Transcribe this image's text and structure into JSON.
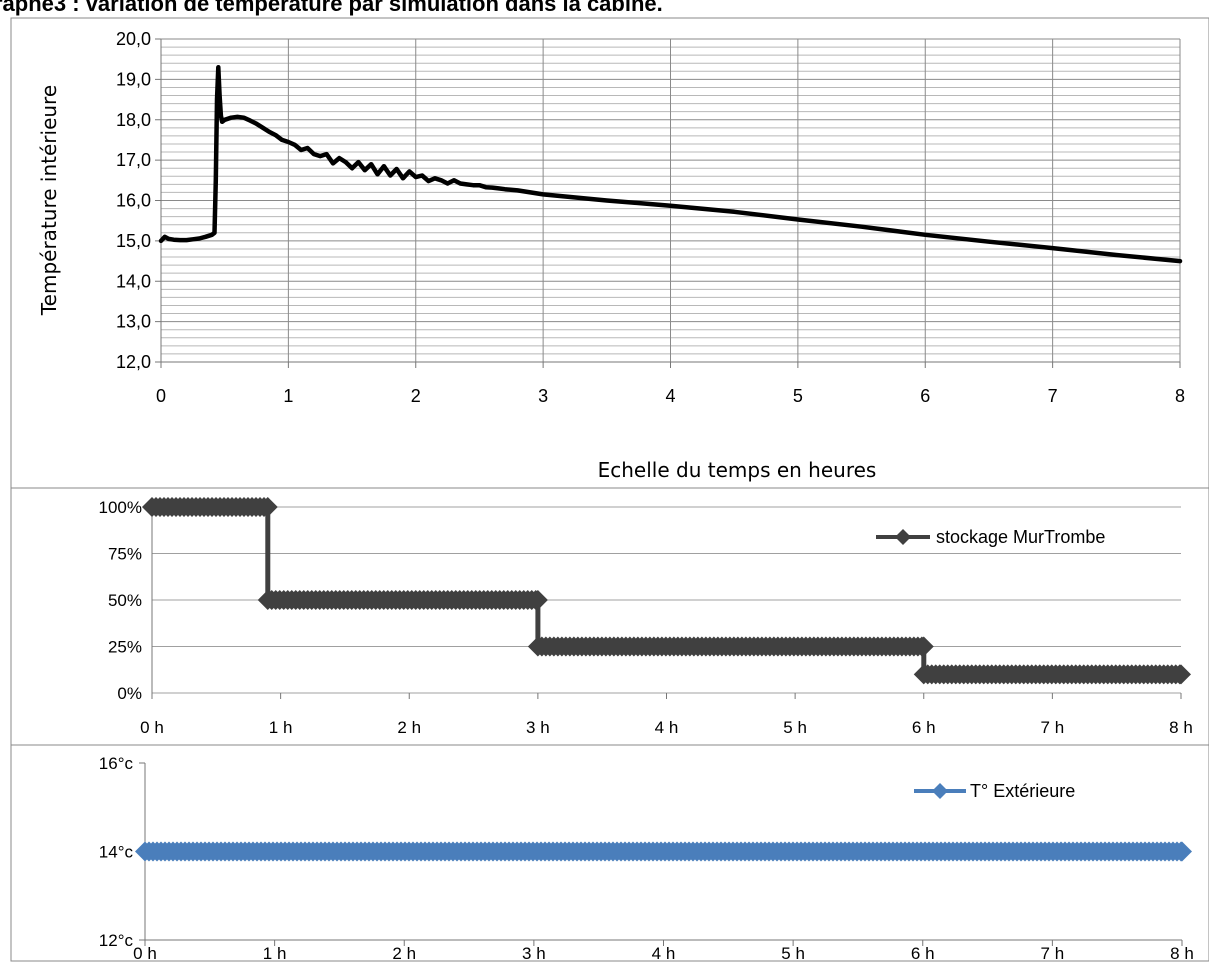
{
  "page_title": "raphe3 : variation de température par simulation dans la cabine.",
  "chart_data": [
    {
      "type": "line",
      "title": "",
      "xlabel": "Echelle du temps en heures",
      "ylabel": "Température intérieure",
      "xlim": [
        0,
        8
      ],
      "ylim": [
        12,
        20
      ],
      "x_ticks": [
        "0",
        "1",
        "2",
        "3",
        "4",
        "5",
        "6",
        "7",
        "8"
      ],
      "y_ticks": [
        "12,0",
        "13,0",
        "14,0",
        "15,0",
        "16,0",
        "17,0",
        "18,0",
        "19,0",
        "20,0"
      ],
      "grid": "major and minor",
      "series": [
        {
          "color": "#000000",
          "x": [
            0,
            0.03,
            0.06,
            0.1,
            0.15,
            0.2,
            0.25,
            0.3,
            0.35,
            0.4,
            0.42,
            0.43,
            0.44,
            0.45,
            0.46,
            0.47,
            0.48,
            0.5,
            0.55,
            0.6,
            0.65,
            0.7,
            0.75,
            0.8,
            0.85,
            0.9,
            0.95,
            1.0,
            1.05,
            1.1,
            1.15,
            1.2,
            1.25,
            1.3,
            1.35,
            1.4,
            1.45,
            1.5,
            1.55,
            1.6,
            1.65,
            1.7,
            1.75,
            1.8,
            1.85,
            1.9,
            1.95,
            2.0,
            2.05,
            2.1,
            2.15,
            2.2,
            2.25,
            2.3,
            2.35,
            2.4,
            2.45,
            2.5,
            2.55,
            2.6,
            2.65,
            2.7,
            2.8,
            2.9,
            3.0,
            3.5,
            4.0,
            4.5,
            5.0,
            5.5,
            6.0,
            6.5,
            7.0,
            7.5,
            8.0
          ],
          "y": [
            15.0,
            15.1,
            15.05,
            15.03,
            15.02,
            15.02,
            15.04,
            15.06,
            15.1,
            15.15,
            15.2,
            16.5,
            18.5,
            19.3,
            18.6,
            18.1,
            17.95,
            18.0,
            18.05,
            18.07,
            18.05,
            17.98,
            17.9,
            17.8,
            17.7,
            17.62,
            17.5,
            17.45,
            17.38,
            17.25,
            17.3,
            17.15,
            17.1,
            17.15,
            16.92,
            17.05,
            16.95,
            16.8,
            16.95,
            16.75,
            16.9,
            16.65,
            16.85,
            16.62,
            16.78,
            16.55,
            16.72,
            16.58,
            16.62,
            16.48,
            16.55,
            16.5,
            16.42,
            16.5,
            16.42,
            16.4,
            16.38,
            16.38,
            16.33,
            16.32,
            16.3,
            16.28,
            16.25,
            16.2,
            16.15,
            16.0,
            15.87,
            15.72,
            15.53,
            15.35,
            15.15,
            14.98,
            14.82,
            14.65,
            14.5
          ]
        }
      ]
    },
    {
      "type": "line",
      "title": "",
      "xlabel": "",
      "ylabel": "",
      "xlim": [
        0,
        8
      ],
      "ylim": [
        0,
        100
      ],
      "x_ticks": [
        "0 h",
        "1 h",
        "2 h",
        "3 h",
        "4 h",
        "5 h",
        "6 h",
        "7 h",
        "8 h"
      ],
      "y_ticks": [
        "0%",
        "25%",
        "50%",
        "75%",
        "100%"
      ],
      "grid": "horizontal",
      "legend_position": "top-right",
      "series": [
        {
          "name": "stockage MurTrombe",
          "color": "#404040",
          "marker": "diamond",
          "x": [
            0,
            0.9,
            0.9,
            3.0,
            3.0,
            6.0,
            6.0,
            8.0
          ],
          "y": [
            100,
            100,
            50,
            50,
            25,
            25,
            10,
            10
          ]
        }
      ]
    },
    {
      "type": "line",
      "title": "",
      "xlabel": "",
      "ylabel": "",
      "xlim": [
        0,
        8
      ],
      "ylim": [
        12,
        16
      ],
      "x_ticks": [
        "0 h",
        "1 h",
        "2 h",
        "3 h",
        "4 h",
        "5 h",
        "6 h",
        "7 h",
        "8 h"
      ],
      "y_ticks": [
        "12°c",
        "14°c",
        "16°c"
      ],
      "grid": "none",
      "legend_position": "top-right",
      "series": [
        {
          "name": "T° Extérieure",
          "color": "#4a7ebb",
          "marker": "diamond",
          "x": [
            0,
            8
          ],
          "y": [
            14,
            14
          ]
        }
      ]
    }
  ]
}
